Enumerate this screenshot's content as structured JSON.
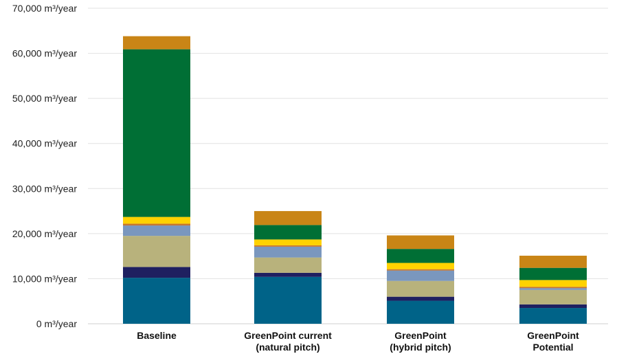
{
  "chart_data": {
    "type": "bar",
    "stacked": true,
    "grid": true,
    "ylim": [
      0,
      70000
    ],
    "y_tick_values": [
      0,
      10000,
      20000,
      30000,
      40000,
      50000,
      60000,
      70000
    ],
    "y_tick_labels": [
      "0 m³/year",
      "10,000 m³/year",
      "20,000 m³/year",
      "30,000 m³/year",
      "40,000 m³/year",
      "50,000 m³/year",
      "60,000 m³/year",
      "70,000 m³/year"
    ],
    "categories": [
      [
        "Baseline"
      ],
      [
        "GreenPoint current",
        "(natural pitch)"
      ],
      [
        "GreenPoint",
        "(hybrid pitch)"
      ],
      [
        "GreenPoint",
        "Potential"
      ]
    ],
    "series": [
      {
        "color": "#006388",
        "values": [
          10200,
          10400,
          5100,
          3500
        ]
      },
      {
        "color": "#1f2060",
        "values": [
          2400,
          900,
          900,
          800
        ]
      },
      {
        "color": "#b8b27c",
        "values": [
          6900,
          3400,
          3500,
          3200
        ]
      },
      {
        "color": "#7a97be",
        "values": [
          2300,
          2400,
          2300,
          400
        ]
      },
      {
        "color": "#c5762e",
        "values": [
          400,
          300,
          300,
          300
        ]
      },
      {
        "color": "#ffd200",
        "values": [
          1500,
          1300,
          1400,
          1500
        ]
      },
      {
        "color": "#006f35",
        "values": [
          37200,
          3200,
          3100,
          2700
        ]
      },
      {
        "color": "#c98516",
        "values": [
          2900,
          3100,
          3000,
          2700
        ]
      }
    ]
  }
}
